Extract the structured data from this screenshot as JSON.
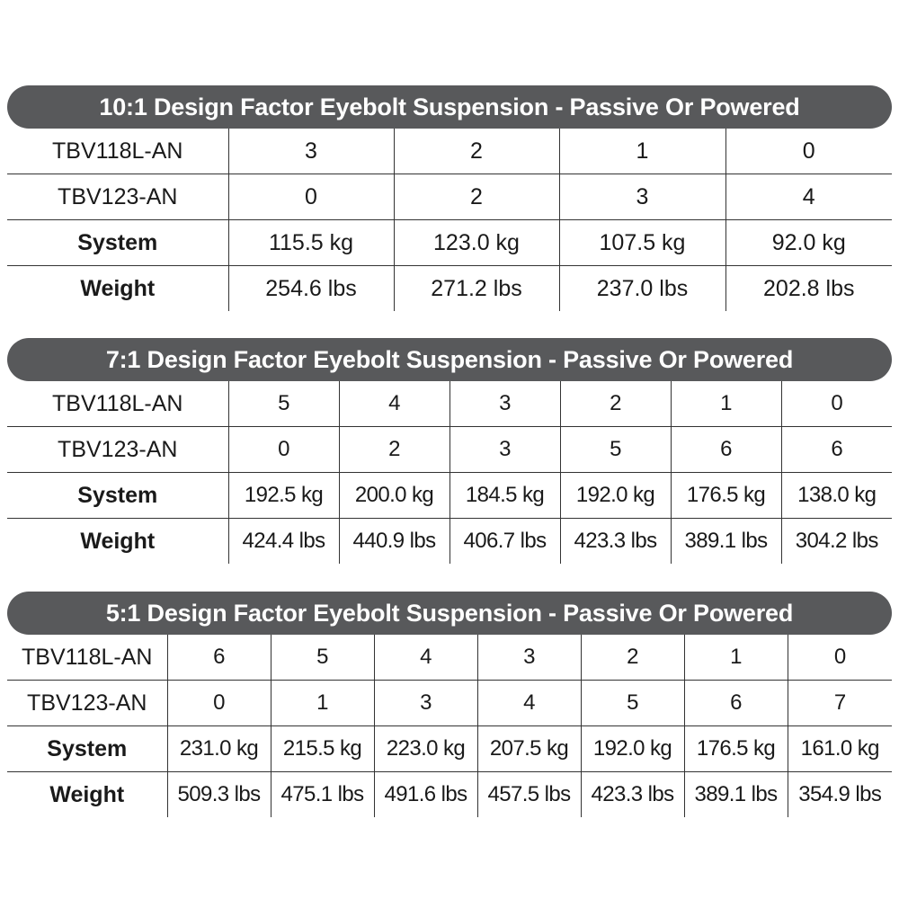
{
  "sections": [
    {
      "title": "10:1 Design Factor Eyebolt Suspension - Passive Or Powered",
      "rows": [
        {
          "label": "TBV118L-AN",
          "values": [
            "3",
            "2",
            "1",
            "0"
          ]
        },
        {
          "label": "TBV123-AN",
          "values": [
            "0",
            "2",
            "3",
            "4"
          ]
        },
        {
          "label": "System",
          "values": [
            "115.5 kg",
            "123.0 kg",
            "107.5 kg",
            "92.0 kg"
          ]
        },
        {
          "label": "Weight",
          "values": [
            "254.6 lbs",
            "271.2 lbs",
            "237.0 lbs",
            "202.8 lbs"
          ]
        }
      ]
    },
    {
      "title": "7:1 Design Factor Eyebolt Suspension - Passive Or Powered",
      "rows": [
        {
          "label": "TBV118L-AN",
          "values": [
            "5",
            "4",
            "3",
            "2",
            "1",
            "0"
          ]
        },
        {
          "label": "TBV123-AN",
          "values": [
            "0",
            "2",
            "3",
            "5",
            "6",
            "6"
          ]
        },
        {
          "label": "System",
          "values": [
            "192.5 kg",
            "200.0 kg",
            "184.5 kg",
            "192.0 kg",
            "176.5 kg",
            "138.0 kg"
          ]
        },
        {
          "label": "Weight",
          "values": [
            "424.4 lbs",
            "440.9 lbs",
            "406.7 lbs",
            "423.3 lbs",
            "389.1 lbs",
            "304.2 lbs"
          ]
        }
      ]
    },
    {
      "title": "5:1 Design Factor Eyebolt Suspension - Passive Or Powered",
      "rows": [
        {
          "label": "TBV118L-AN",
          "values": [
            "6",
            "5",
            "4",
            "3",
            "2",
            "1",
            "0"
          ]
        },
        {
          "label": "TBV123-AN",
          "values": [
            "0",
            "1",
            "3",
            "4",
            "5",
            "6",
            "7"
          ]
        },
        {
          "label": "System",
          "values": [
            "231.0 kg",
            "215.5 kg",
            "223.0 kg",
            "207.5 kg",
            "192.0 kg",
            "176.5 kg",
            "161.0 kg"
          ]
        },
        {
          "label": "Weight",
          "values": [
            "509.3 lbs",
            "475.1 lbs",
            "491.6 lbs",
            "457.5 lbs",
            "423.3 lbs",
            "389.1 lbs",
            "354.9 lbs"
          ]
        }
      ]
    }
  ]
}
